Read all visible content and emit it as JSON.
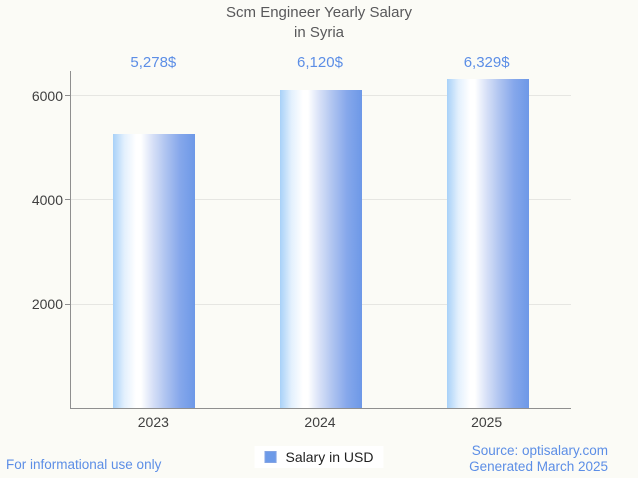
{
  "title": {
    "line1": "Scm Engineer Yearly Salary",
    "line2": "in Syria"
  },
  "chart_data": {
    "type": "bar",
    "title": "Scm Engineer Yearly Salary in Syria",
    "categories": [
      "2023",
      "2024",
      "2025"
    ],
    "series": [
      {
        "name": "Salary in USD",
        "values": [
          5278,
          6120,
          6329
        ]
      }
    ],
    "value_labels": [
      "5,278$",
      "6,120$",
      "6,329$"
    ],
    "xlabel": "",
    "ylabel": "",
    "yticks": [
      2000,
      4000,
      6000
    ],
    "ylim": [
      0,
      6480
    ],
    "grid": true,
    "legend_position": "bottom"
  },
  "legend": {
    "label": "Salary in USD"
  },
  "footer": {
    "disclaimer": "For informational use only",
    "source": "Source: optisalary.com",
    "generated": "Generated March 2025"
  },
  "colors": {
    "accent_blue": "#5C8EE6",
    "bar_main": "#6D98E7",
    "bar_light": "#A8D1F8",
    "legend_swatch": "#6D9AE8",
    "axis": "#8F8F8F",
    "gridline": "#E6E6E2",
    "background": "#FBFBF6",
    "title_text": "#58585A",
    "tick_text": "#3F3F3F"
  }
}
